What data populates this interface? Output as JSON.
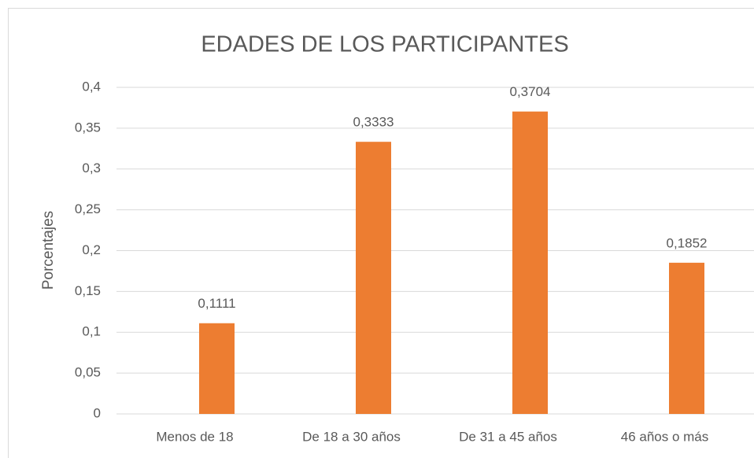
{
  "chart_data": {
    "type": "bar",
    "title": "EDADES DE LOS PARTICIPANTES",
    "y_label": "Porcentajes",
    "categories": [
      "Menos de 18",
      "De 18 a 30 años",
      "De 31 a 45 años",
      "46 años o más"
    ],
    "values": [
      0.1111,
      0.3333,
      0.3704,
      0.1852
    ],
    "value_labels": [
      "0,1111",
      "0,3333",
      "0,3704",
      "0,1852"
    ],
    "color": "#ed7d31",
    "ylim": [
      0,
      0.4
    ],
    "yticks": [
      0,
      {
        "value": 0.05,
        "label": "0,05"
      },
      {
        "value": 0.1,
        "label": "0,1"
      },
      {
        "value": 0.15,
        "label": "0,15"
      },
      {
        "value": 0.2,
        "label": "0,2"
      },
      {
        "value": 0.25,
        "label": "0,25"
      },
      {
        "value": 0.3,
        "label": "0,3"
      },
      {
        "value": 0.35,
        "label": "0,35"
      },
      {
        "value": 0.4,
        "label": "0,4"
      }
    ],
    "grid": true
  }
}
